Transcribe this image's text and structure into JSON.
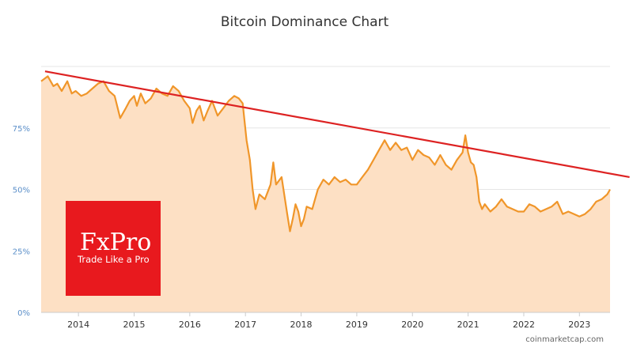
{
  "chart_data": {
    "type": "area",
    "title": "Bitcoin Dominance Chart",
    "xlabel": "",
    "ylabel": "",
    "x_ticks": [
      "2014",
      "2015",
      "2016",
      "2017",
      "2018",
      "2019",
      "2020",
      "2021",
      "2022",
      "2023"
    ],
    "y_ticks": [
      "0%",
      "25%",
      "50%",
      "75%"
    ],
    "xlim": [
      2013.33,
      2023.55
    ],
    "ylim": [
      0,
      100
    ],
    "grid": "horizontal",
    "colors": {
      "line": "#f0962a",
      "fill": "#fde0c4",
      "trend": "#dd2222",
      "logo_bg": "#e8191e"
    },
    "series": [
      {
        "x": [
          2013.33,
          2013.45,
          2013.55,
          2013.62,
          2013.7,
          2013.8,
          2013.88,
          2013.95,
          2014.05,
          2014.15,
          2014.25,
          2014.35,
          2014.45,
          2014.55,
          2014.65,
          2014.75,
          2014.85,
          2014.92,
          2015.0,
          2015.05,
          2015.12,
          2015.2,
          2015.3,
          2015.4,
          2015.5,
          2015.6,
          2015.7,
          2015.8,
          2015.9,
          2016.0,
          2016.05,
          2016.12,
          2016.18,
          2016.25,
          2016.32,
          2016.4,
          2016.5,
          2016.6,
          2016.7,
          2016.8,
          2016.88,
          2016.95,
          2017.02,
          2017.08,
          2017.13,
          2017.18,
          2017.25,
          2017.35,
          2017.45,
          2017.5,
          2017.55,
          2017.65,
          2017.75,
          2017.8,
          2017.85,
          2017.9,
          2017.95,
          2018.0,
          2018.05,
          2018.1,
          2018.2,
          2018.3,
          2018.4,
          2018.5,
          2018.6,
          2018.7,
          2018.8,
          2018.9,
          2019.0,
          2019.1,
          2019.2,
          2019.3,
          2019.4,
          2019.5,
          2019.55,
          2019.6,
          2019.7,
          2019.8,
          2019.9,
          2020.0,
          2020.1,
          2020.2,
          2020.3,
          2020.4,
          2020.5,
          2020.6,
          2020.7,
          2020.8,
          2020.9,
          2020.95,
          2021.0,
          2021.05,
          2021.1,
          2021.15,
          2021.2,
          2021.25,
          2021.3,
          2021.4,
          2021.5,
          2021.6,
          2021.7,
          2021.8,
          2021.9,
          2022.0,
          2022.1,
          2022.2,
          2022.3,
          2022.4,
          2022.5,
          2022.6,
          2022.7,
          2022.8,
          2022.9,
          2023.0,
          2023.1,
          2023.2,
          2023.3,
          2023.4,
          2023.5,
          2023.55
        ],
        "values": [
          94,
          96,
          92,
          93,
          90,
          94,
          89,
          90,
          88,
          89,
          91,
          93,
          94,
          90,
          88,
          79,
          83,
          86,
          88,
          84,
          89,
          85,
          87,
          91,
          89,
          88,
          92,
          90,
          86,
          83,
          77,
          82,
          84,
          78,
          82,
          86,
          80,
          83,
          86,
          88,
          87,
          85,
          70,
          62,
          50,
          42,
          48,
          46,
          52,
          61,
          52,
          55,
          40,
          33,
          38,
          44,
          41,
          35,
          38,
          43,
          42,
          50,
          54,
          52,
          55,
          53,
          54,
          52,
          52,
          55,
          58,
          62,
          66,
          70,
          68,
          66,
          69,
          66,
          67,
          62,
          66,
          64,
          63,
          60,
          64,
          60,
          58,
          62,
          65,
          72,
          65,
          61,
          60,
          55,
          45,
          42,
          44,
          41,
          43,
          46,
          43,
          42,
          41,
          41,
          44,
          43,
          41,
          42,
          43,
          45,
          40,
          41,
          40,
          39,
          40,
          42,
          45,
          46,
          48,
          50
        ]
      }
    ],
    "trendline": {
      "x": [
        2013.4,
        2023.9
      ],
      "y": [
        98,
        55
      ]
    },
    "credit": "coinmarketcap.com",
    "logo": {
      "brand": "FxPro",
      "tagline": "Trade Like a Pro"
    }
  }
}
